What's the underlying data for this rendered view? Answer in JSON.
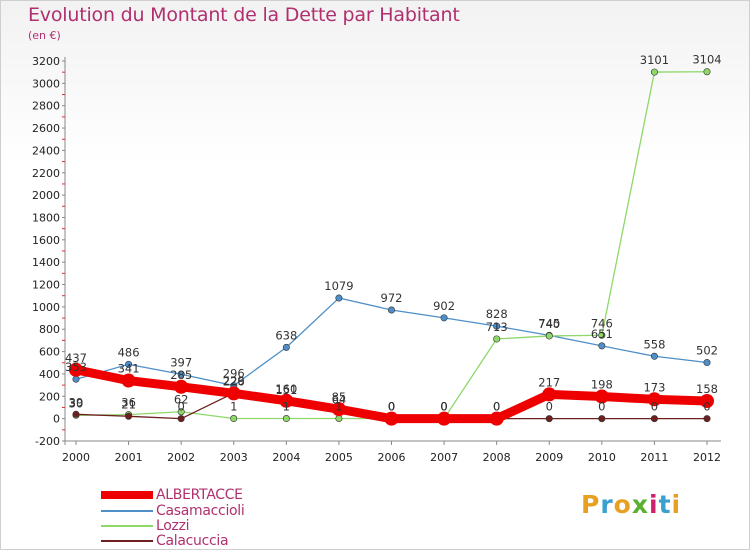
{
  "header": {
    "title": "Evolution du Montant de la Dette par Habitant",
    "subtitle": "(en €)"
  },
  "chart_data": {
    "type": "line",
    "title": "Evolution du Montant de la Dette par Habitant",
    "subtitle": "(en €)",
    "xlabel": "",
    "ylabel": "",
    "categories": [
      "2000",
      "2001",
      "2002",
      "2003",
      "2004",
      "2005",
      "2006",
      "2007",
      "2008",
      "2009",
      "2010",
      "2011",
      "2012"
    ],
    "ylim": [
      -200,
      3200
    ],
    "yticks": [
      -200,
      0,
      200,
      400,
      600,
      800,
      1000,
      1200,
      1400,
      1600,
      1800,
      2000,
      2200,
      2400,
      2600,
      2800,
      3000,
      3200
    ],
    "grid": false,
    "legend_position": "bottom-left",
    "series": [
      {
        "name": "ALBERTACCE",
        "color": "#ee0000",
        "values": [
          437,
          341,
          285,
          226,
          160,
          85,
          0,
          0,
          0,
          217,
          198,
          173,
          158
        ]
      },
      {
        "name": "Casamaccioli",
        "color": "#4e8fc9",
        "values": [
          353,
          486,
          397,
          296,
          638,
          1079,
          972,
          902,
          828,
          745,
          651,
          558,
          502
        ]
      },
      {
        "name": "Lozzi",
        "color": "#8ed86a",
        "values": [
          30,
          36,
          62,
          1,
          1,
          1,
          0,
          0,
          713,
          740,
          746,
          3101,
          3104
        ]
      },
      {
        "name": "Calacuccia",
        "color": "#6e1f1f",
        "values": [
          39,
          21,
          0,
          229,
          151,
          64,
          0,
          0,
          0,
          0,
          0,
          0,
          0
        ]
      }
    ]
  },
  "logo": {
    "text": "Proxiti",
    "letters": [
      "P",
      "r",
      "o",
      "x",
      "i",
      "t",
      "i"
    ],
    "colors": [
      "#e8a020",
      "#3aa0d0",
      "#e8a020",
      "#5bb030",
      "#d02070",
      "#3aa0d0",
      "#e8a020"
    ]
  }
}
